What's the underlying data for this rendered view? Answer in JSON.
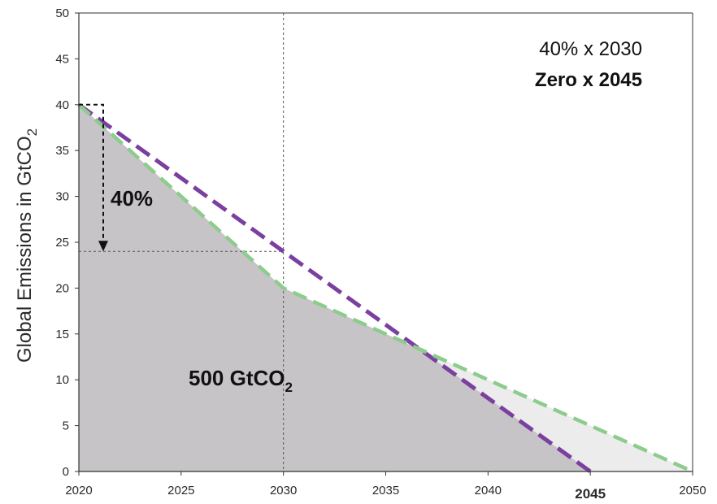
{
  "chart_data": {
    "type": "area",
    "ylabel": "Global Emissions in GtCO",
    "ylabel_subscript": "2",
    "xlim": [
      2020,
      2050
    ],
    "ylim": [
      0,
      50
    ],
    "x_ticks": [
      "2020",
      "2025",
      "2030",
      "2035",
      "2040",
      "2045",
      "2050"
    ],
    "highlighted_x_tick": "2045",
    "y_ticks": [
      "0",
      "5",
      "10",
      "15",
      "20",
      "25",
      "30",
      "35",
      "40",
      "45",
      "50"
    ],
    "grid": false,
    "series": [
      {
        "color": "#7b3fa0",
        "x": [
          2020,
          2045
        ],
        "y": [
          40,
          0
        ]
      },
      {
        "color": "#8ccc8c",
        "x": [
          2020,
          2030,
          2050
        ],
        "y": [
          40,
          20,
          0
        ]
      }
    ],
    "reference_lines": {
      "x": 2030,
      "y": 24
    },
    "annotations": {
      "line1": "40% x 2030",
      "line2": "Zero x 2045",
      "reduction": "40%",
      "budget": "500 GtCO",
      "budget_subscript": "2"
    },
    "colors": {
      "dark_fill": "#c6c4c6",
      "light_fill": "#ececec",
      "highlight_tick": "#c0282d",
      "axis": "#333333"
    }
  }
}
